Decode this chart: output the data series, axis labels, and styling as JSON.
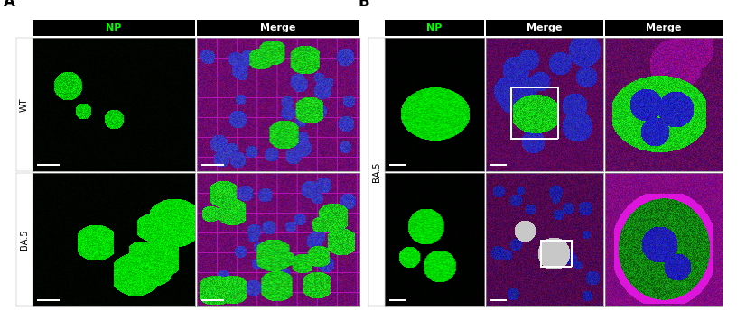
{
  "panel_A_label": "A",
  "panel_B_label": "B",
  "col_headers_A": [
    "NP",
    "Merge"
  ],
  "col_headers_B": [
    "NP",
    "Merge",
    "Merge"
  ],
  "row_labels_A": [
    "WT",
    "BA.5"
  ],
  "row_label_B": "BA.5",
  "header_bg_color": "#000000",
  "header_text_color_NP": "#00ff00",
  "header_text_color_Merge": "#ffffff",
  "row_label_bg": "#ffffff",
  "row_label_text": "#000000",
  "panel_label_color": "#000000",
  "grid_line_color": "#888888",
  "scale_bar_color": "#ffffff",
  "background_color": "#ffffff",
  "fig_width": 8.26,
  "fig_height": 3.44,
  "dpi": 100
}
